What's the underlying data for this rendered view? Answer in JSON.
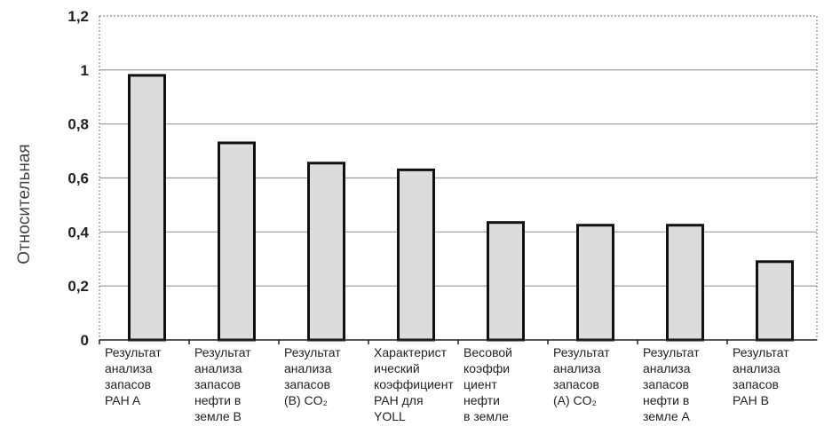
{
  "chart_data": {
    "type": "bar",
    "ylabel": "Относительная",
    "ylim": [
      0,
      1.2
    ],
    "yticks": [
      "0",
      "0,2",
      "0,4",
      "0,6",
      "0,8",
      "1",
      "1,2"
    ],
    "grid": true,
    "categories": [
      [
        "Результат",
        "анализа",
        "запасов",
        "PAH A"
      ],
      [
        "Результат",
        "анализа",
        "запасов",
        "нефти в",
        "земле В"
      ],
      [
        "Результат",
        "анализа",
        "запасов",
        "(В) CO₂"
      ],
      [
        "Характерист",
        "ический",
        "коэффициент",
        "PAH для",
        "YOLL"
      ],
      [
        "Весовой",
        "коэффи",
        "циент",
        "нефти",
        "в земле"
      ],
      [
        "Результат",
        "анализа",
        "запасов",
        "(А) CO₂"
      ],
      [
        "Результат",
        "анализа",
        "запасов",
        "нефти в",
        "земле А"
      ],
      [
        "Результат",
        "анализа",
        "запасов",
        "PAH B"
      ]
    ],
    "values": [
      0.98,
      0.73,
      0.655,
      0.63,
      0.435,
      0.425,
      0.425,
      0.29
    ]
  }
}
